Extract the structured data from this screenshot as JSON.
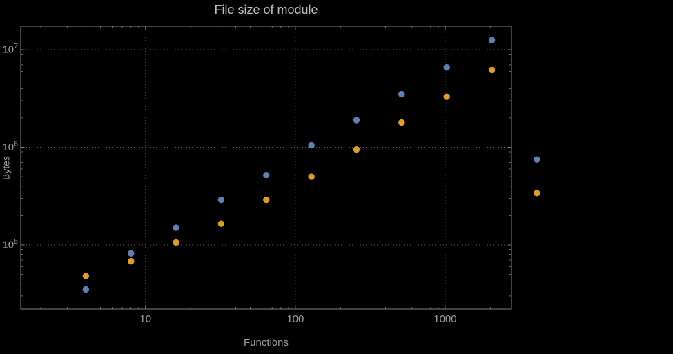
{
  "chart_data": {
    "type": "scatter",
    "title": "File size of module",
    "xlabel": "Functions",
    "ylabel": "Bytes",
    "xscale": "log",
    "yscale": "log",
    "xlim": [
      1.47,
      2770
    ],
    "ylim": [
      22000,
      17400000
    ],
    "grid": true,
    "legend": false,
    "x": [
      4,
      8,
      16,
      32,
      64,
      128,
      256,
      512,
      1024,
      2048,
      4096
    ],
    "series": [
      {
        "name": "series-1-blue",
        "color": "#5e81b5",
        "values": [
          35000,
          82000,
          150000,
          290000,
          520000,
          1050000,
          1900000,
          3500000,
          6600000,
          12500000,
          750000
        ]
      },
      {
        "name": "series-2-orange",
        "color": "#e19c24",
        "values": [
          48000,
          68000,
          106000,
          165000,
          290000,
          500000,
          950000,
          1800000,
          3300000,
          6200000,
          340000
        ]
      }
    ],
    "x_ticks": [
      {
        "v": 10,
        "label": "10"
      },
      {
        "v": 100,
        "label": "100"
      },
      {
        "v": 1000,
        "label": "1000"
      }
    ],
    "y_ticks": [
      {
        "v": 100000,
        "base": "10",
        "exp": "5"
      },
      {
        "v": 1000000,
        "base": "10",
        "exp": "6"
      },
      {
        "v": 10000000,
        "base": "10",
        "exp": "7"
      }
    ],
    "colors": {
      "background": "#000000",
      "frame": "#858585",
      "grid": "#5f5f5f",
      "tick_label": "#9e9e9e",
      "axis_label": "#9e9e9e",
      "title": "#bfbfbf"
    }
  }
}
